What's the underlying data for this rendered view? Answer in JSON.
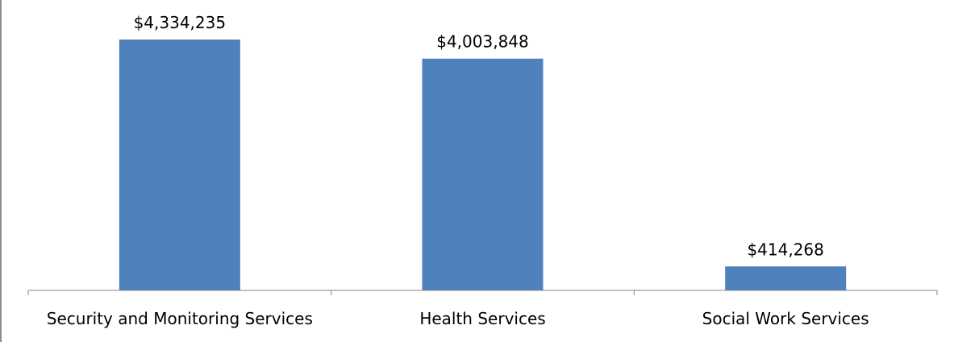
{
  "chart_data": {
    "type": "bar",
    "categories": [
      "Security and Monitoring Services",
      "Health Services",
      "Social Work Services"
    ],
    "values": [
      4334235,
      4003848,
      414268
    ],
    "data_labels": [
      "$4,334,235",
      "$4,003,848",
      "$414,268"
    ],
    "title": "",
    "xlabel": "",
    "ylabel": "",
    "ylim": [
      0,
      4334235
    ],
    "grid": false,
    "legend": "none",
    "bar_color": "#4f81bd",
    "axis_color": "#868686"
  }
}
